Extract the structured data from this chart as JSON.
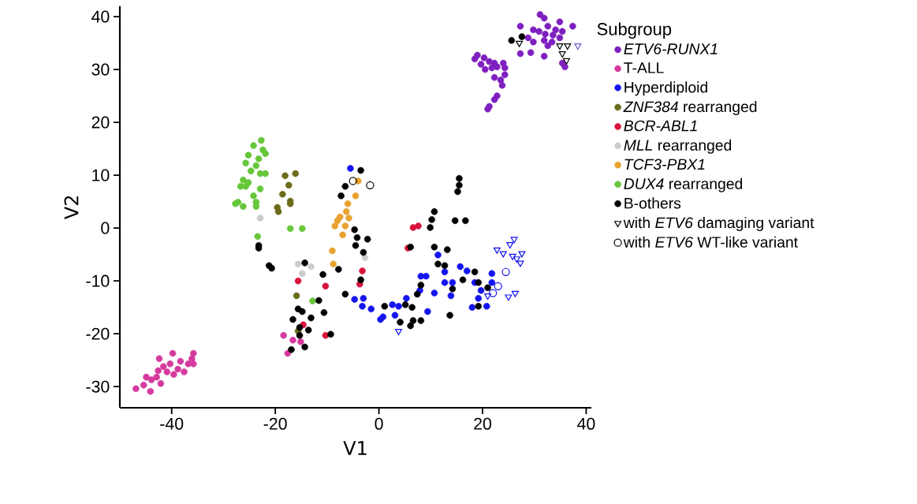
{
  "chart_data": {
    "type": "scatter",
    "xlabel": "V1",
    "ylabel": "V2",
    "legend_title": "Subgroup",
    "xlim": [
      -50,
      41
    ],
    "ylim": [
      -34,
      42
    ],
    "xticks": [
      -40,
      -20,
      0,
      20,
      40
    ],
    "yticks": [
      -30,
      -20,
      -10,
      0,
      10,
      20,
      30,
      40
    ],
    "legend": "right",
    "series": [
      {
        "name": "*ETV6-RUNX1*",
        "color": "#7e1fbf",
        "x": [
          19.0,
          20.3,
          21.3,
          22.3,
          24.0,
          18.5,
          19.7,
          20.5,
          21.8,
          22.8,
          24.3,
          24.3,
          22.3,
          23.5,
          23.8,
          22.8,
          22.3,
          21.3,
          21.0,
          31.1,
          31.9,
          27.3,
          29.8,
          30.9,
          32.6,
          34.9,
          37.4,
          34.1,
          35.4,
          32.1,
          33.6,
          34.9,
          28.8,
          29.8,
          31.9,
          33.4,
          27.3,
          29.3,
          31.9,
          32.6,
          35.4,
          35.9
        ],
        "values": [
          32.7,
          32.2,
          31.5,
          31.2,
          31.2,
          32.0,
          31.0,
          30.0,
          30.3,
          30.5,
          30.3,
          29.0,
          28.5,
          28.0,
          27.0,
          25.0,
          24.3,
          23.0,
          22.5,
          40.4,
          39.7,
          38.2,
          37.5,
          37.2,
          38.2,
          39.0,
          38.2,
          37.5,
          37.2,
          36.7,
          36.5,
          36.0,
          36.0,
          35.2,
          35.5,
          35.2,
          33.0,
          33.2,
          32.5,
          34.5,
          31.2,
          30.5
        ]
      },
      {
        "name": "T-ALL",
        "color": "#d63a9e",
        "x": [
          -46.9,
          -45.4,
          -44.1,
          -43.9,
          -42.9,
          -42.4,
          -42.6,
          -41.6,
          -40.9,
          -40.3,
          -39.8,
          -39.6,
          -38.8,
          -38.3,
          -37.6,
          -36.8,
          -35.8,
          -35.8,
          -36.1,
          -42.1,
          -44.9,
          -18.4,
          -16.6,
          -15.1,
          -17.6
        ],
        "values": [
          -30.4,
          -29.7,
          -30.9,
          -28.7,
          -28.2,
          -24.7,
          -27.0,
          -26.2,
          -27.2,
          -25.7,
          -23.7,
          -27.7,
          -26.7,
          -25.2,
          -27.2,
          -25.7,
          -23.7,
          -25.7,
          -24.7,
          -29.4,
          -28.2,
          -20.3,
          -21.2,
          -21.5,
          -23.7
        ]
      },
      {
        "name": "Hyperdiploid",
        "color": "#1414f0",
        "x": [
          -5.5,
          11.4,
          12.7,
          15.7,
          17.0,
          8.1,
          9.1,
          12.7,
          14.2,
          18.5,
          19.7,
          21.8,
          21.8,
          7.9,
          10.7,
          13.9,
          19.2,
          20.8,
          18.0,
          -4.7,
          -3.0,
          -3.2,
          -1.5,
          0.3,
          0.8,
          2.6,
          3.8,
          3.1,
          5.3,
          9.4
        ],
        "values": [
          11.3,
          -5.1,
          -8.3,
          -7.3,
          -8.1,
          -9.1,
          -9.1,
          -10.3,
          -10.3,
          -10.3,
          -11.8,
          -8.6,
          -10.3,
          -11.8,
          -12.3,
          -12.8,
          -13.3,
          -14.8,
          -15.0,
          -13.5,
          -13.3,
          -14.8,
          -15.3,
          -17.3,
          -16.8,
          -14.5,
          -14.8,
          -16.5,
          -13.3,
          -15.8
        ]
      },
      {
        "name": "*ZNF384* rearranged",
        "color": "#6b6b1a",
        "x": [
          -18.1,
          -16.1,
          -17.4,
          -18.6,
          -17.1,
          -19.6,
          -19.4,
          -17.1,
          -15.9,
          -15.6
        ],
        "values": [
          9.9,
          10.3,
          8.1,
          6.4,
          5.1,
          3.9,
          3.1,
          4.6,
          -12.8,
          -19.5
        ]
      },
      {
        "name": "*BCR-ABL1*",
        "color": "#d8143c",
        "x": [
          6.6,
          7.6,
          5.6,
          -3.2,
          -3.7,
          -15.6,
          -10.3,
          -14.6,
          -10.3
        ],
        "values": [
          0.1,
          0.4,
          -3.8,
          -8.1,
          -10.6,
          -10.0,
          -11.0,
          -18.3,
          -20.3
        ]
      },
      {
        "name": "*MLL* rearranged",
        "color": "#cccccc",
        "x": [
          -22.9,
          -15.6,
          -13.1,
          -14.8,
          -2.7
        ],
        "values": [
          1.9,
          -6.8,
          -7.3,
          -8.6,
          -5.6
        ]
      },
      {
        "name": "*TCF3-PBX1*",
        "color": "#e8a22e",
        "x": [
          -4.0,
          -4.5,
          -6.0,
          -6.3,
          -7.5,
          -5.8,
          -8.5,
          -6.5,
          -7.0,
          -8.0,
          -9.0,
          -8.8
        ],
        "values": [
          8.9,
          6.1,
          4.6,
          3.1,
          2.1,
          1.9,
          0.4,
          0.4,
          -1.3,
          1.4,
          -4.3,
          -6.8
        ]
      },
      {
        "name": "*DUX4* rearranged",
        "color": "#66c73a",
        "x": [
          -22.7,
          -24.2,
          -22.4,
          -21.9,
          -25.2,
          -23.2,
          -23.7,
          -25.7,
          -24.7,
          -22.9,
          -21.9,
          -26.2,
          -25.2,
          -26.7,
          -25.7,
          -22.9,
          -24.2,
          -27.2,
          -23.7,
          -27.7,
          -26.2,
          -23.7,
          -17.1,
          -14.8,
          -23.4,
          -12.8
        ],
        "values": [
          16.6,
          15.6,
          14.8,
          14.1,
          13.8,
          13.1,
          11.8,
          12.3,
          10.8,
          10.3,
          10.3,
          9.1,
          8.6,
          7.9,
          7.9,
          7.4,
          6.1,
          4.9,
          4.9,
          4.6,
          4.1,
          4.1,
          -0.1,
          -0.1,
          -1.6,
          -13.8
        ]
      },
      {
        "name": "B-others",
        "color": "#000000",
        "x": [
          25.6,
          27.6,
          -3.5,
          -6.5,
          -7.3,
          15.5,
          15.5,
          15.2,
          10.7,
          10.2,
          9.9,
          14.7,
          16.7,
          -4.7,
          -4.2,
          -2.2,
          -4.5,
          -3.0,
          6.1,
          10.7,
          13.2,
          -7.8,
          -3.5,
          -6.5,
          11.4,
          12.7,
          18.5,
          16.2,
          19.2,
          21.0,
          8.1,
          14.2,
          7.4,
          19.2,
          1.1,
          5.1,
          6.4,
          13.7,
          4.1,
          6.1,
          6.6,
          8.1,
          -23.2,
          -23.2,
          -21.2,
          -20.7,
          -14.3,
          -10.8,
          -11.6,
          -15.6,
          -14.8,
          -10.6,
          -13.1,
          -16.6,
          -15.3,
          -13.6,
          -15.3,
          -9.3,
          -16.9,
          -14.3
        ],
        "values": [
          35.5,
          36.2,
          10.9,
          7.9,
          6.1,
          9.4,
          8.1,
          6.9,
          3.1,
          1.6,
          0.1,
          1.4,
          1.4,
          -0.3,
          -1.8,
          -2.1,
          -3.3,
          -4.6,
          -3.6,
          -3.6,
          -4.1,
          -7.8,
          -9.8,
          -12.5,
          -6.8,
          -7.1,
          -8.3,
          -9.8,
          -10.3,
          -11.3,
          -10.8,
          -11.5,
          -12.5,
          -14.8,
          -14.8,
          -14.5,
          -15.0,
          -16.5,
          -17.8,
          -18.5,
          -17.5,
          -17.5,
          -3.3,
          -3.8,
          -7.1,
          -7.6,
          -6.6,
          -8.8,
          -13.7,
          -15.3,
          -15.8,
          -16.0,
          -17.0,
          -17.3,
          -18.8,
          -19.3,
          -20.3,
          -20.1,
          -23.0,
          -22.5
        ]
      },
      {
        "name": "with *ETV6* damaging variant",
        "color": "#000000",
        "marker": "triangle",
        "x": [
          27.1,
          34.9,
          36.4,
          38.4,
          35.4,
          36.2,
          26.1,
          25.3,
          22.8,
          24.0,
          27.6,
          26.6,
          27.3,
          25.8,
          25.0,
          26.3,
          3.8,
          21.0
        ],
        "values": [
          35.0,
          34.5,
          34.5,
          34.5,
          33.0,
          31.7,
          -2.1,
          -3.1,
          -4.1,
          -4.8,
          -4.8,
          -5.8,
          -6.6,
          -5.3,
          -13.0,
          -12.3,
          -19.5,
          -12.8
        ],
        "colors": [
          "#000000",
          "#000000",
          "#000000",
          "#6a5acd",
          "#000000",
          "#000000",
          "#1414f0",
          "#1414f0",
          "#1414f0",
          "#1414f0",
          "#1414f0",
          "#1414f0",
          "#1414f0",
          "#1414f0",
          "#1414f0",
          "#1414f0",
          "#1414f0",
          "#1414f0"
        ]
      },
      {
        "name": "with *ETV6* WT-like variant",
        "color": "#000000",
        "marker": "circle",
        "x": [
          24.5,
          23.0,
          22.0,
          -5.0,
          -1.7
        ],
        "values": [
          -8.3,
          -11.0,
          -12.3,
          8.9,
          8.1
        ],
        "colors": [
          "#1414f0",
          "#1414f0",
          "#1414f0",
          "#000000",
          "#000000"
        ]
      }
    ]
  }
}
